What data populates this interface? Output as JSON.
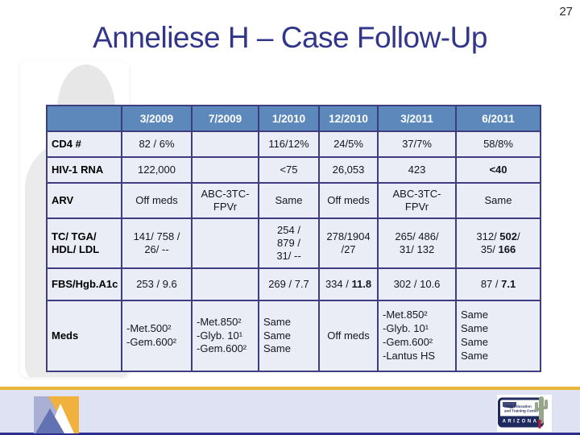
{
  "meta": {
    "page_number": "27"
  },
  "header": {
    "title": "Anneliese H – Case Follow-Up"
  },
  "table": {
    "columns": [
      "",
      "3/2009",
      "7/2009",
      "1/2010",
      "12/2010",
      "3/2011",
      "6/2011"
    ],
    "rows": [
      {
        "label": "CD4 #",
        "cells": [
          "82 / 6%",
          "",
          "116/12%",
          "24/5%",
          "37/7%",
          "58/8%"
        ]
      },
      {
        "label": "HIV-1 RNA",
        "cells": [
          "122,000",
          "",
          "<75",
          "26,053",
          "423",
          "**<40**"
        ]
      },
      {
        "label": "ARV",
        "cells": [
          "Off meds",
          "ABC-3TC-\nFPVr",
          "Same",
          "Off meds",
          "ABC-3TC-\nFPVr",
          "Same"
        ]
      },
      {
        "label": "TC/ TGA/\nHDL/ LDL",
        "cells": [
          "141/ 758 /\n26/ --",
          "",
          "254 /\n879 /\n31/ --",
          "278/1904\n/27",
          "265/ 486/\n31/ 132",
          "312/ **502**/\n35/ **166**"
        ]
      },
      {
        "label": "FBS/Hgb.A1c",
        "cells": [
          "253 / 9.6",
          "",
          "269 / 7.7",
          "334 / **11.8**",
          "302 / 10.6",
          "87 / **7.1**"
        ]
      },
      {
        "label": "Meds",
        "cells": [
          "-Met.500²\n-Gem.600²",
          "-Met.850²\n-Glyb. 10¹\n-Gem.600²",
          "Same\nSame\nSame",
          "Off meds",
          "-Met.850²\n-Glyb. 10¹\n-Gem.600²\n-Lantus HS",
          "Same\nSame\nSame\nSame"
        ]
      }
    ]
  },
  "footer": {
    "logo_left": {
      "icon": "mountain-logo"
    },
    "logo_right": {
      "icon": "arizona-aetc-logo",
      "org_line1": "AIDS Education",
      "org_line2": "and Training Center",
      "region": "ARIZONA"
    }
  },
  "colors": {
    "title": "#32368b",
    "header_bg": "#5c88bb",
    "cell_bg": "#eaedf6",
    "table_border": "#3d3d80",
    "gold_bar": "#e9b63b",
    "footer_bg": "#dee2f3",
    "footer_edge": "#2b2e8c",
    "logo_orange": "#f0b13e",
    "logo_blue": "#6272b2",
    "logo_periwinkle": "#a9b0d4",
    "logo_navy": "#1e2a5e"
  }
}
